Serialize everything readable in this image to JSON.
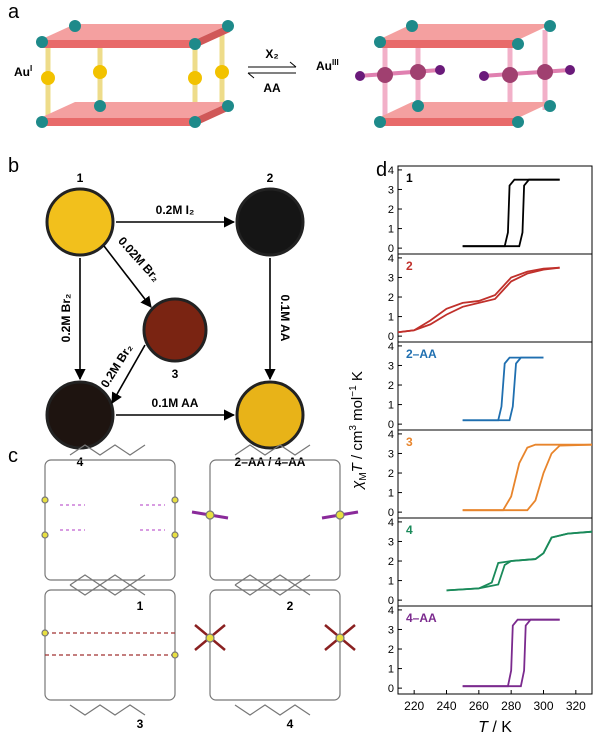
{
  "panel_a": {
    "label": "a",
    "left": {
      "base": "Au",
      "sup": "I"
    },
    "right": {
      "base": "Au",
      "sup": "III"
    },
    "forward": "X₂",
    "backward": "AA"
  },
  "panel_b": {
    "label": "b",
    "nodes": [
      "1",
      "2",
      "3",
      "4",
      "2–AA / 4–AA"
    ],
    "arrows": [
      "0.2M I₂",
      "0.02M Br₂",
      "0.2M Br₂",
      "0.2M Br₂",
      "0.1M AA",
      "0.1M AA"
    ]
  },
  "panel_c": {
    "label": "c",
    "labels": [
      "1",
      "2",
      "3",
      "4"
    ]
  },
  "panel_d": {
    "label": "d"
  },
  "chart_data": [
    {
      "type": "line",
      "label": "1",
      "label_color": "#000000",
      "ylabel": [
        "χ",
        "M",
        "T",
        " / cm",
        "3",
        " mol",
        "−1",
        " K"
      ],
      "xlim": [
        210,
        330
      ],
      "ylim": [
        -0.3,
        4.2
      ],
      "yticks": [
        0,
        1,
        2,
        3,
        4
      ],
      "series": [
        {
          "color": "#000000",
          "x": [
            250,
            276,
            278,
            279,
            282,
            310
          ],
          "values": [
            0.1,
            0.1,
            0.8,
            3.2,
            3.5,
            3.5
          ]
        },
        {
          "color": "#000000",
          "x": [
            250,
            285,
            287,
            288,
            291,
            310
          ],
          "values": [
            0.1,
            0.1,
            0.8,
            3.2,
            3.5,
            3.5
          ]
        }
      ]
    },
    {
      "type": "line",
      "label": "2",
      "label_color": "#c0302b",
      "xlim": [
        210,
        330
      ],
      "ylim": [
        -0.3,
        4.2
      ],
      "yticks": [
        0,
        1,
        2,
        3,
        4
      ],
      "series": [
        {
          "color": "#c0302b",
          "x": [
            210,
            220,
            230,
            240,
            250,
            260,
            270,
            280,
            290,
            300,
            310
          ],
          "values": [
            0.2,
            0.3,
            0.6,
            1.1,
            1.5,
            1.7,
            1.9,
            2.8,
            3.2,
            3.4,
            3.5
          ]
        },
        {
          "color": "#c0302b",
          "x": [
            210,
            220,
            230,
            240,
            250,
            260,
            270,
            280,
            290,
            300,
            310
          ],
          "values": [
            0.2,
            0.3,
            0.8,
            1.4,
            1.7,
            1.8,
            2.1,
            3.0,
            3.3,
            3.45,
            3.5
          ]
        }
      ]
    },
    {
      "type": "line",
      "label": "2–AA",
      "label_color": "#1f6fb0",
      "xlim": [
        210,
        330
      ],
      "ylim": [
        -0.3,
        4.2
      ],
      "yticks": [
        0,
        1,
        2,
        3,
        4
      ],
      "series": [
        {
          "color": "#1f6fb0",
          "x": [
            250,
            272,
            274,
            276,
            279,
            300
          ],
          "values": [
            0.2,
            0.2,
            0.9,
            3.1,
            3.4,
            3.4
          ]
        },
        {
          "color": "#1f6fb0",
          "x": [
            250,
            279,
            281,
            283,
            286,
            300
          ],
          "values": [
            0.2,
            0.2,
            0.9,
            3.1,
            3.4,
            3.4
          ]
        }
      ]
    },
    {
      "type": "line",
      "label": "3",
      "label_color": "#e8852c",
      "xlim": [
        210,
        330
      ],
      "ylim": [
        -0.3,
        4.2
      ],
      "yticks": [
        0,
        1,
        2,
        3,
        4
      ],
      "series": [
        {
          "color": "#e8852c",
          "x": [
            250,
            275,
            280,
            285,
            290,
            295,
            330
          ],
          "values": [
            0.1,
            0.1,
            0.8,
            2.5,
            3.3,
            3.45,
            3.45
          ]
        },
        {
          "color": "#e8852c",
          "x": [
            250,
            290,
            295,
            300,
            305,
            310,
            330
          ],
          "values": [
            0.1,
            0.1,
            0.6,
            2.0,
            3.0,
            3.4,
            3.45
          ]
        }
      ]
    },
    {
      "type": "line",
      "label": "4",
      "label_color": "#1a8a5a",
      "xlim": [
        210,
        330
      ],
      "ylim": [
        -0.3,
        4.2
      ],
      "yticks": [
        0,
        1,
        2,
        3,
        4
      ],
      "series": [
        {
          "color": "#1a8a5a",
          "x": [
            240,
            260,
            268,
            272,
            280,
            295,
            300,
            305,
            315,
            330
          ],
          "values": [
            0.5,
            0.6,
            0.9,
            1.9,
            2.0,
            2.1,
            2.4,
            3.2,
            3.4,
            3.5
          ]
        },
        {
          "color": "#1a8a5a",
          "x": [
            240,
            260,
            272,
            276,
            280,
            295,
            300,
            305,
            315,
            330
          ],
          "values": [
            0.5,
            0.6,
            0.8,
            1.8,
            2.0,
            2.1,
            2.4,
            3.2,
            3.4,
            3.5
          ]
        }
      ]
    },
    {
      "type": "line",
      "label": "4–AA",
      "label_color": "#7b2a8e",
      "xlim": [
        210,
        330
      ],
      "ylim": [
        -0.3,
        4.2
      ],
      "yticks": [
        0,
        1,
        2,
        3,
        4
      ],
      "xticks": [
        220,
        240,
        260,
        280,
        300,
        320
      ],
      "xlabel": [
        "T",
        " / K"
      ],
      "series": [
        {
          "color": "#7b2a8e",
          "x": [
            250,
            278,
            280,
            281,
            284,
            310
          ],
          "values": [
            0.1,
            0.1,
            0.9,
            3.2,
            3.5,
            3.5
          ]
        },
        {
          "color": "#7b2a8e",
          "x": [
            250,
            286,
            288,
            289,
            292,
            310
          ],
          "values": [
            0.1,
            0.1,
            0.9,
            3.2,
            3.5,
            3.5
          ]
        }
      ]
    }
  ]
}
